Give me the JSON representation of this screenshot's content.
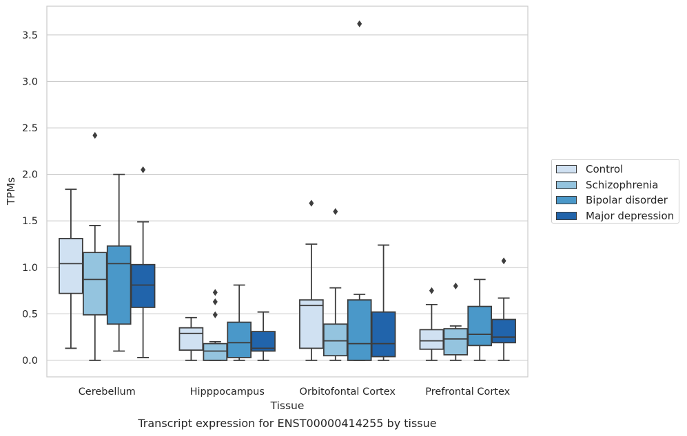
{
  "chart_data": {
    "type": "box",
    "title": "Transcript expression for ENST00000414255 by tissue",
    "xlabel": "Tissue",
    "ylabel": "TPMs",
    "ylim": [
      -0.18,
      3.78
    ],
    "yticks": [
      "0.0",
      "0.5",
      "1.0",
      "1.5",
      "2.0",
      "2.5",
      "3.0",
      "3.5"
    ],
    "grid": "horizontal",
    "legend_position": "right",
    "categories": [
      "Cerebellum",
      "Hipppocampus",
      "Orbitofontal Cortex",
      "Prefrontal Cortex"
    ],
    "series": [
      {
        "name": "Control",
        "color": "#d0e1f2",
        "boxes": [
          {
            "whislo": 0.13,
            "q1": 0.72,
            "med": 1.04,
            "q3": 1.31,
            "whishi": 1.84,
            "fliers": []
          },
          {
            "whislo": 0.0,
            "q1": 0.11,
            "med": 0.29,
            "q3": 0.35,
            "whishi": 0.46,
            "fliers": []
          },
          {
            "whislo": 0.0,
            "q1": 0.13,
            "med": 0.59,
            "q3": 0.65,
            "whishi": 1.25,
            "fliers": [
              1.69
            ]
          },
          {
            "whislo": 0.0,
            "q1": 0.12,
            "med": 0.21,
            "q3": 0.33,
            "whishi": 0.6,
            "fliers": [
              0.75
            ]
          }
        ]
      },
      {
        "name": "Schizophrenia",
        "color": "#94c4df",
        "boxes": [
          {
            "whislo": 0.0,
            "q1": 0.49,
            "med": 0.87,
            "q3": 1.16,
            "whishi": 1.45,
            "fliers": [
              2.42
            ]
          },
          {
            "whislo": 0.0,
            "q1": 0.0,
            "med": 0.1,
            "q3": 0.18,
            "whishi": 0.2,
            "fliers": [
              0.49,
              0.63,
              0.73
            ]
          },
          {
            "whislo": 0.0,
            "q1": 0.05,
            "med": 0.21,
            "q3": 0.39,
            "whishi": 0.78,
            "fliers": [
              1.6
            ]
          },
          {
            "whislo": 0.0,
            "q1": 0.06,
            "med": 0.23,
            "q3": 0.34,
            "whishi": 0.37,
            "fliers": [
              0.8
            ]
          }
        ]
      },
      {
        "name": "Bipolar disorder",
        "color": "#4a98c9",
        "boxes": [
          {
            "whislo": 0.1,
            "q1": 0.39,
            "med": 1.04,
            "q3": 1.23,
            "whishi": 2.0,
            "fliers": []
          },
          {
            "whislo": 0.0,
            "q1": 0.03,
            "med": 0.19,
            "q3": 0.41,
            "whishi": 0.81,
            "fliers": []
          },
          {
            "whislo": 0.0,
            "q1": 0.0,
            "med": 0.18,
            "q3": 0.65,
            "whishi": 0.71,
            "fliers": [
              3.62
            ]
          },
          {
            "whislo": 0.0,
            "q1": 0.16,
            "med": 0.28,
            "q3": 0.58,
            "whishi": 0.87,
            "fliers": []
          }
        ]
      },
      {
        "name": "Major depression",
        "color": "#2164ab",
        "boxes": [
          {
            "whislo": 0.03,
            "q1": 0.57,
            "med": 0.81,
            "q3": 1.03,
            "whishi": 1.49,
            "fliers": [
              2.05
            ]
          },
          {
            "whislo": 0.0,
            "q1": 0.1,
            "med": 0.13,
            "q3": 0.31,
            "whishi": 0.52,
            "fliers": []
          },
          {
            "whislo": 0.0,
            "q1": 0.04,
            "med": 0.18,
            "q3": 0.52,
            "whishi": 1.24,
            "fliers": []
          },
          {
            "whislo": 0.0,
            "q1": 0.19,
            "med": 0.25,
            "q3": 0.44,
            "whishi": 0.67,
            "fliers": [
              1.07
            ]
          }
        ]
      }
    ]
  }
}
